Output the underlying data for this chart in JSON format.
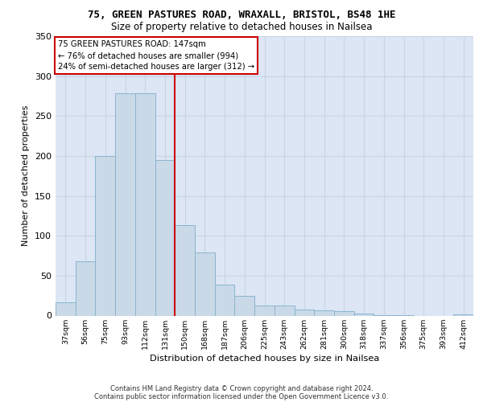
{
  "title1": "75, GREEN PASTURES ROAD, WRAXALL, BRISTOL, BS48 1HE",
  "title2": "Size of property relative to detached houses in Nailsea",
  "xlabel": "Distribution of detached houses by size in Nailsea",
  "ylabel": "Number of detached properties",
  "categories": [
    "37sqm",
    "56sqm",
    "75sqm",
    "93sqm",
    "112sqm",
    "131sqm",
    "150sqm",
    "168sqm",
    "187sqm",
    "206sqm",
    "225sqm",
    "243sqm",
    "262sqm",
    "281sqm",
    "300sqm",
    "318sqm",
    "337sqm",
    "356sqm",
    "375sqm",
    "393sqm",
    "412sqm"
  ],
  "values": [
    17,
    68,
    200,
    278,
    278,
    195,
    113,
    79,
    39,
    25,
    13,
    13,
    8,
    7,
    6,
    3,
    1,
    1,
    0,
    0,
    2
  ],
  "bar_color": "#c9d9e8",
  "bar_edge_color": "#8ab4cc",
  "vline_x": 5.5,
  "vline_color": "#cc0000",
  "annotation_text": "75 GREEN PASTURES ROAD: 147sqm\n← 76% of detached houses are smaller (994)\n24% of semi-detached houses are larger (312) →",
  "annotation_box_color": "#ffffff",
  "annotation_box_edge": "#cc0000",
  "grid_color": "#c8d4e4",
  "background_color": "#dce6f5",
  "ylim": [
    0,
    350
  ],
  "yticks": [
    0,
    50,
    100,
    150,
    200,
    250,
    300,
    350
  ],
  "footer1": "Contains HM Land Registry data © Crown copyright and database right 2024.",
  "footer2": "Contains public sector information licensed under the Open Government Licence v3.0."
}
